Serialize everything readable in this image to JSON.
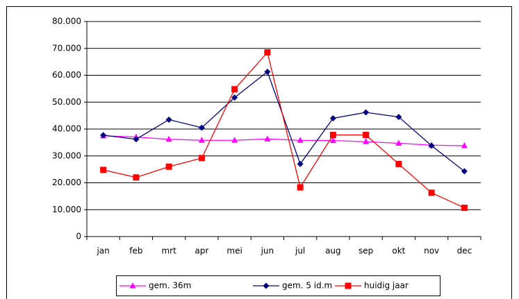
{
  "chart_data": {
    "type": "line",
    "categories": [
      "jan",
      "feb",
      "mrt",
      "apr",
      "mei",
      "jun",
      "jul",
      "aug",
      "sep",
      "okt",
      "nov",
      "dec"
    ],
    "series": [
      {
        "name": "gem. 36m",
        "color": "#ff00ff",
        "marker": "triangle",
        "values": [
          37500,
          37000,
          36200,
          35800,
          35800,
          36300,
          35800,
          35700,
          35300,
          34700,
          34000,
          33800
        ]
      },
      {
        "name": "gem. 5 id.m",
        "color": "#000080",
        "marker": "diamond",
        "values": [
          37700,
          36200,
          43500,
          40500,
          51700,
          61300,
          27000,
          44000,
          46200,
          44500,
          33800,
          24300
        ]
      },
      {
        "name": "huidig jaar",
        "color": "#ff0000",
        "marker": "square",
        "values": [
          24800,
          22000,
          26000,
          29200,
          54800,
          68500,
          18300,
          37800,
          37800,
          27000,
          16300,
          10700
        ]
      }
    ],
    "ylim": [
      0,
      80000
    ],
    "yticks": [
      0,
      {
        "value": 10000,
        "label": "10.000"
      },
      {
        "value": 20000,
        "label": "20.000"
      },
      {
        "value": 30000,
        "label": "30.000"
      },
      {
        "value": 40000,
        "label": "40.000"
      },
      {
        "value": 50000,
        "label": "50.000"
      },
      {
        "value": 60000,
        "label": "60.000"
      },
      {
        "value": 70000,
        "label": "70.000"
      },
      {
        "value": 80000,
        "label": "80.000"
      }
    ],
    "grid": true,
    "legend": "bottom"
  }
}
